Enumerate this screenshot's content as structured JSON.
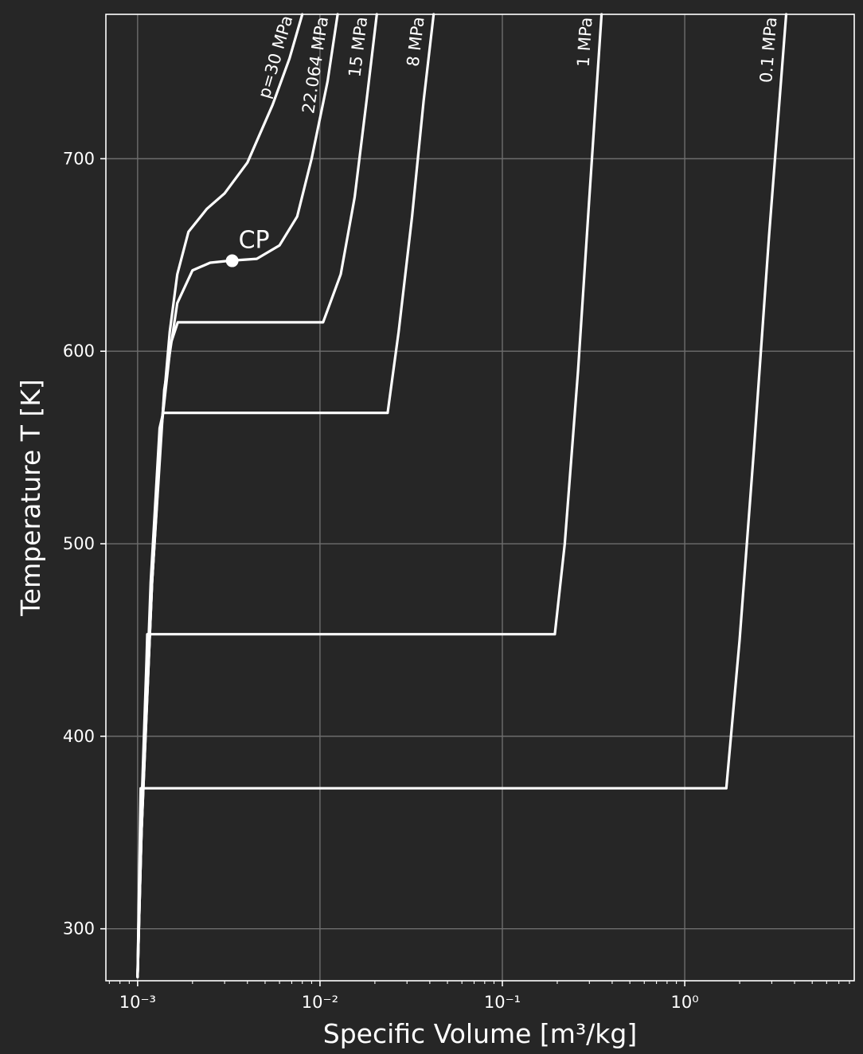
{
  "chart_data": {
    "type": "line",
    "xlabel": "Specific Volume [m³/kg]",
    "ylabel": "Temperature T [K]",
    "xscale": "log",
    "xlim": [
      0.00067,
      8.5
    ],
    "ylim": [
      273,
      775
    ],
    "grid": true,
    "x_ticks": [
      {
        "value": 0.001,
        "label": "10⁻³"
      },
      {
        "value": 0.01,
        "label": "10⁻²"
      },
      {
        "value": 0.1,
        "label": "10⁻¹"
      },
      {
        "value": 1,
        "label": "10⁰"
      }
    ],
    "y_ticks": [
      300,
      400,
      500,
      600,
      700
    ],
    "colors": {
      "background": "#262626",
      "line": "#ffffff",
      "grid": "#6e6e6e"
    },
    "series": [
      {
        "name": "p=30 MPa",
        "points": [
          [
            0.001,
            275
          ],
          [
            0.00102,
            320
          ],
          [
            0.00108,
            380
          ],
          [
            0.0012,
            480
          ],
          [
            0.00135,
            560
          ],
          [
            0.0015,
            610
          ],
          [
            0.00165,
            640
          ],
          [
            0.0019,
            662
          ],
          [
            0.0024,
            674
          ],
          [
            0.003,
            682
          ],
          [
            0.004,
            698
          ],
          [
            0.0055,
            728
          ],
          [
            0.0068,
            752
          ],
          [
            0.008,
            775
          ]
        ]
      },
      {
        "name": "22.064 MPa",
        "points": [
          [
            0.001,
            275
          ],
          [
            0.00105,
            350
          ],
          [
            0.0012,
            480
          ],
          [
            0.0014,
            580
          ],
          [
            0.00165,
            625
          ],
          [
            0.002,
            642
          ],
          [
            0.0025,
            646
          ],
          [
            0.0032,
            647
          ],
          [
            0.0045,
            648
          ],
          [
            0.006,
            655
          ],
          [
            0.0075,
            670
          ],
          [
            0.009,
            700
          ],
          [
            0.011,
            740
          ],
          [
            0.0125,
            775
          ]
        ]
      },
      {
        "name": "15 MPa",
        "points": [
          [
            0.001,
            275
          ],
          [
            0.00105,
            350
          ],
          [
            0.0012,
            480
          ],
          [
            0.00135,
            560
          ],
          [
            0.00152,
            604
          ],
          [
            0.00166,
            615
          ],
          [
            0.0104,
            615
          ],
          [
            0.013,
            640
          ],
          [
            0.0155,
            680
          ],
          [
            0.018,
            730
          ],
          [
            0.0205,
            775
          ]
        ]
      },
      {
        "name": "8 MPa",
        "points": [
          [
            0.001,
            275
          ],
          [
            0.00105,
            350
          ],
          [
            0.00118,
            480
          ],
          [
            0.00132,
            560
          ],
          [
            0.00138,
            568
          ],
          [
            0.0235,
            568
          ],
          [
            0.027,
            610
          ],
          [
            0.032,
            670
          ],
          [
            0.037,
            730
          ],
          [
            0.042,
            775
          ]
        ]
      },
      {
        "name": "1 MPa",
        "points": [
          [
            0.001,
            275
          ],
          [
            0.00104,
            350
          ],
          [
            0.00112,
            440
          ],
          [
            0.00113,
            453
          ],
          [
            0.194,
            453
          ],
          [
            0.22,
            500
          ],
          [
            0.26,
            590
          ],
          [
            0.3,
            680
          ],
          [
            0.35,
            775
          ]
        ]
      },
      {
        "name": "0.1 MPa",
        "points": [
          [
            0.001,
            275
          ],
          [
            0.00104,
            373
          ],
          [
            1.69,
            373
          ],
          [
            2.0,
            450
          ],
          [
            2.4,
            550
          ],
          [
            2.9,
            660
          ],
          [
            3.6,
            775
          ]
        ]
      }
    ],
    "annotations": [
      {
        "text": "CP",
        "x": 0.0033,
        "y": 647,
        "marker": "dot"
      }
    ]
  }
}
